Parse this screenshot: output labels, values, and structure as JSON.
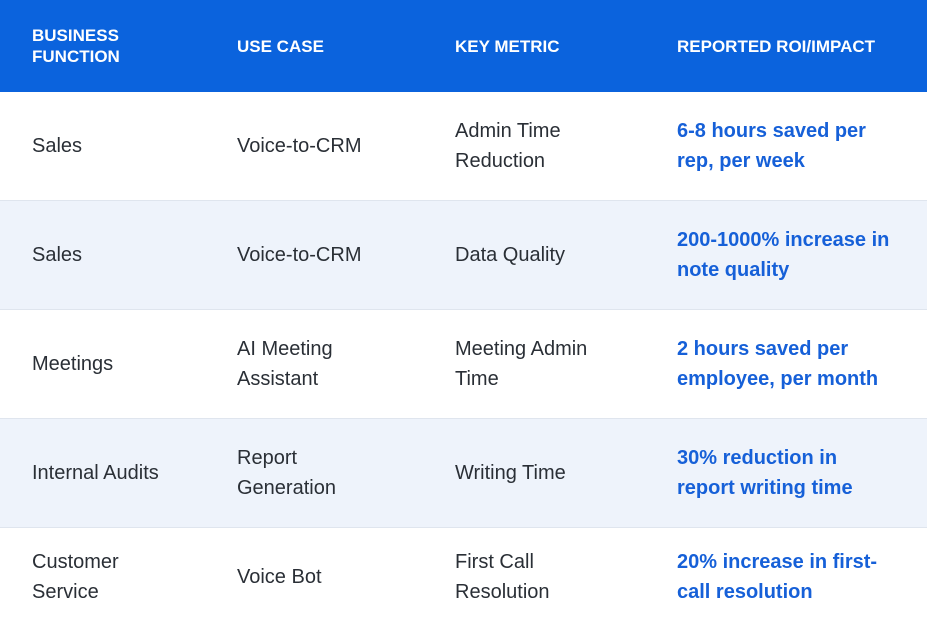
{
  "table": {
    "header": [
      "BUSINESS FUNCTION",
      "USE CASE",
      "KEY METRIC",
      "REPORTED ROI/IMPACT"
    ],
    "rows": [
      [
        "Sales",
        "Voice-to-CRM",
        "Admin Time Reduction",
        "6-8 hours saved per rep, per week"
      ],
      [
        "Sales",
        "Voice-to-CRM",
        "Data Quality",
        "200-1000% increase in note quality"
      ],
      [
        "Meetings",
        "AI Meeting Assistant",
        "Meeting Admin Time",
        "2 hours saved per employee, per month"
      ],
      [
        "Internal Audits",
        "Report Generation",
        "Writing Time",
        "30% reduction in report writing time"
      ],
      [
        "Customer Service",
        "Voice Bot",
        "First Call Resolution",
        "20% increase in first-call resolution"
      ]
    ]
  }
}
